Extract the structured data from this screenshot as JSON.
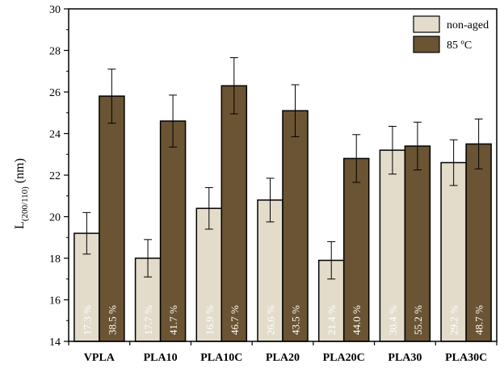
{
  "chart_data": {
    "type": "bar",
    "categories": [
      "VPLA",
      "PLA10",
      "PLA10C",
      "PLA20",
      "PLA20C",
      "PLA30",
      "PLA30C"
    ],
    "series": [
      {
        "name": "non-aged",
        "color": "#e3dccb",
        "values": [
          19.2,
          18.0,
          20.4,
          20.8,
          17.9,
          23.2,
          22.6
        ],
        "errors": [
          1.0,
          0.9,
          1.0,
          1.05,
          0.9,
          1.15,
          1.1
        ],
        "labels": [
          "17.3 %",
          "17.7 %",
          "16.9 %",
          "26.6 %",
          "21.4 %",
          "30.4 %",
          "29.2 %"
        ]
      },
      {
        "name": "85 ºC",
        "color": "#6b5433",
        "values": [
          25.8,
          24.6,
          26.3,
          25.1,
          22.8,
          23.4,
          23.5
        ],
        "errors": [
          1.3,
          1.25,
          1.35,
          1.25,
          1.15,
          1.15,
          1.2
        ],
        "labels": [
          "38.5 %",
          "41.7 %",
          "46.7 %",
          "43.5 %",
          "44.0 %",
          "55.2 %",
          "48.7 %"
        ]
      }
    ],
    "ylabel_main": "L",
    "ylabel_sub": "(200/110)",
    "ylabel_unit": " (nm)",
    "ylim": [
      14,
      30
    ],
    "yticks": [
      "14",
      "16",
      "18",
      "20",
      "22",
      "24",
      "26",
      "28",
      "30"
    ],
    "legend_position": "top-right",
    "grid": false
  }
}
